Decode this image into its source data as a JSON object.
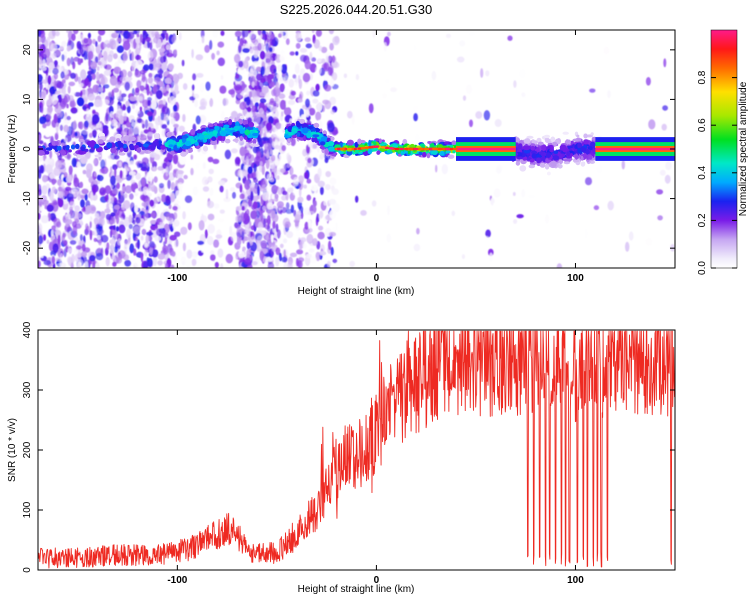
{
  "title": "S225.2026.044.20.51.G30",
  "chart_data": [
    {
      "type": "heatmap",
      "xlabel": "Height of straight line (km)",
      "ylabel": "Frequency (Hz)",
      "xlim": [
        -170,
        150
      ],
      "ylim": [
        -24,
        24
      ],
      "x_ticks": [
        -100,
        0,
        100
      ],
      "x_tick_labels": [
        "-100",
        "0",
        "100"
      ],
      "y_ticks": [
        20,
        10,
        0,
        -10,
        -20
      ],
      "y_tick_labels": [
        "20",
        "10",
        "0",
        "-10",
        "-20"
      ],
      "colorbar": {
        "label": "Normalized spectral amplitude",
        "range": [
          0,
          1
        ],
        "ticks": [
          0.0,
          0.2,
          0.4,
          0.6,
          0.8
        ],
        "tick_labels": [
          "0.0",
          "0.2",
          "0.4",
          "0.6",
          "0.8"
        ]
      },
      "ridge": {
        "x": [
          -170,
          -100,
          -90,
          -80,
          -70,
          -60,
          -50,
          -40,
          -30,
          -25,
          -20,
          -10,
          0,
          10,
          20,
          40,
          60,
          70,
          80,
          90,
          100,
          110,
          120,
          130,
          150
        ],
        "freq": [
          0,
          1,
          2,
          3.5,
          4,
          3,
          2,
          4,
          3,
          1,
          0,
          0,
          0.5,
          0,
          0,
          0,
          0,
          -0.5,
          -1,
          -1,
          0,
          0,
          0,
          0,
          0
        ]
      }
    },
    {
      "type": "line",
      "xlabel": "Height of straight line (km)",
      "ylabel": "SNR (10 * v/v)",
      "xlim": [
        -170,
        150
      ],
      "ylim": [
        0,
        400
      ],
      "x_ticks": [
        -100,
        0,
        100
      ],
      "x_tick_labels": [
        "-100",
        "0",
        "100"
      ],
      "y_ticks": [
        0,
        100,
        200,
        300,
        400
      ],
      "y_tick_labels": [
        "0",
        "100",
        "200",
        "300",
        "400"
      ],
      "series": [
        {
          "name": "SNR",
          "color": "#ee2a22",
          "x": [
            -170,
            -150,
            -130,
            -110,
            -100,
            -90,
            -80,
            -75,
            -70,
            -65,
            -60,
            -50,
            -40,
            -30,
            -25,
            -20,
            -15,
            -10,
            -5,
            0,
            5,
            10,
            15,
            20,
            25,
            30,
            40,
            50,
            60,
            70,
            75,
            80,
            85,
            90,
            95,
            100,
            105,
            110,
            115,
            120,
            130,
            140,
            150
          ],
          "values": [
            20,
            20,
            25,
            25,
            30,
            40,
            60,
            70,
            60,
            30,
            25,
            30,
            60,
            100,
            140,
            170,
            190,
            190,
            200,
            230,
            260,
            280,
            300,
            310,
            325,
            335,
            345,
            350,
            350,
            355,
            350,
            355,
            355,
            350,
            350,
            340,
            335,
            350,
            345,
            350,
            355,
            355,
            350
          ]
        }
      ],
      "dropouts": [
        76,
        79,
        82,
        85,
        87,
        90,
        93,
        95,
        97,
        101,
        104,
        106,
        109,
        111,
        113,
        116,
        148
      ]
    }
  ]
}
